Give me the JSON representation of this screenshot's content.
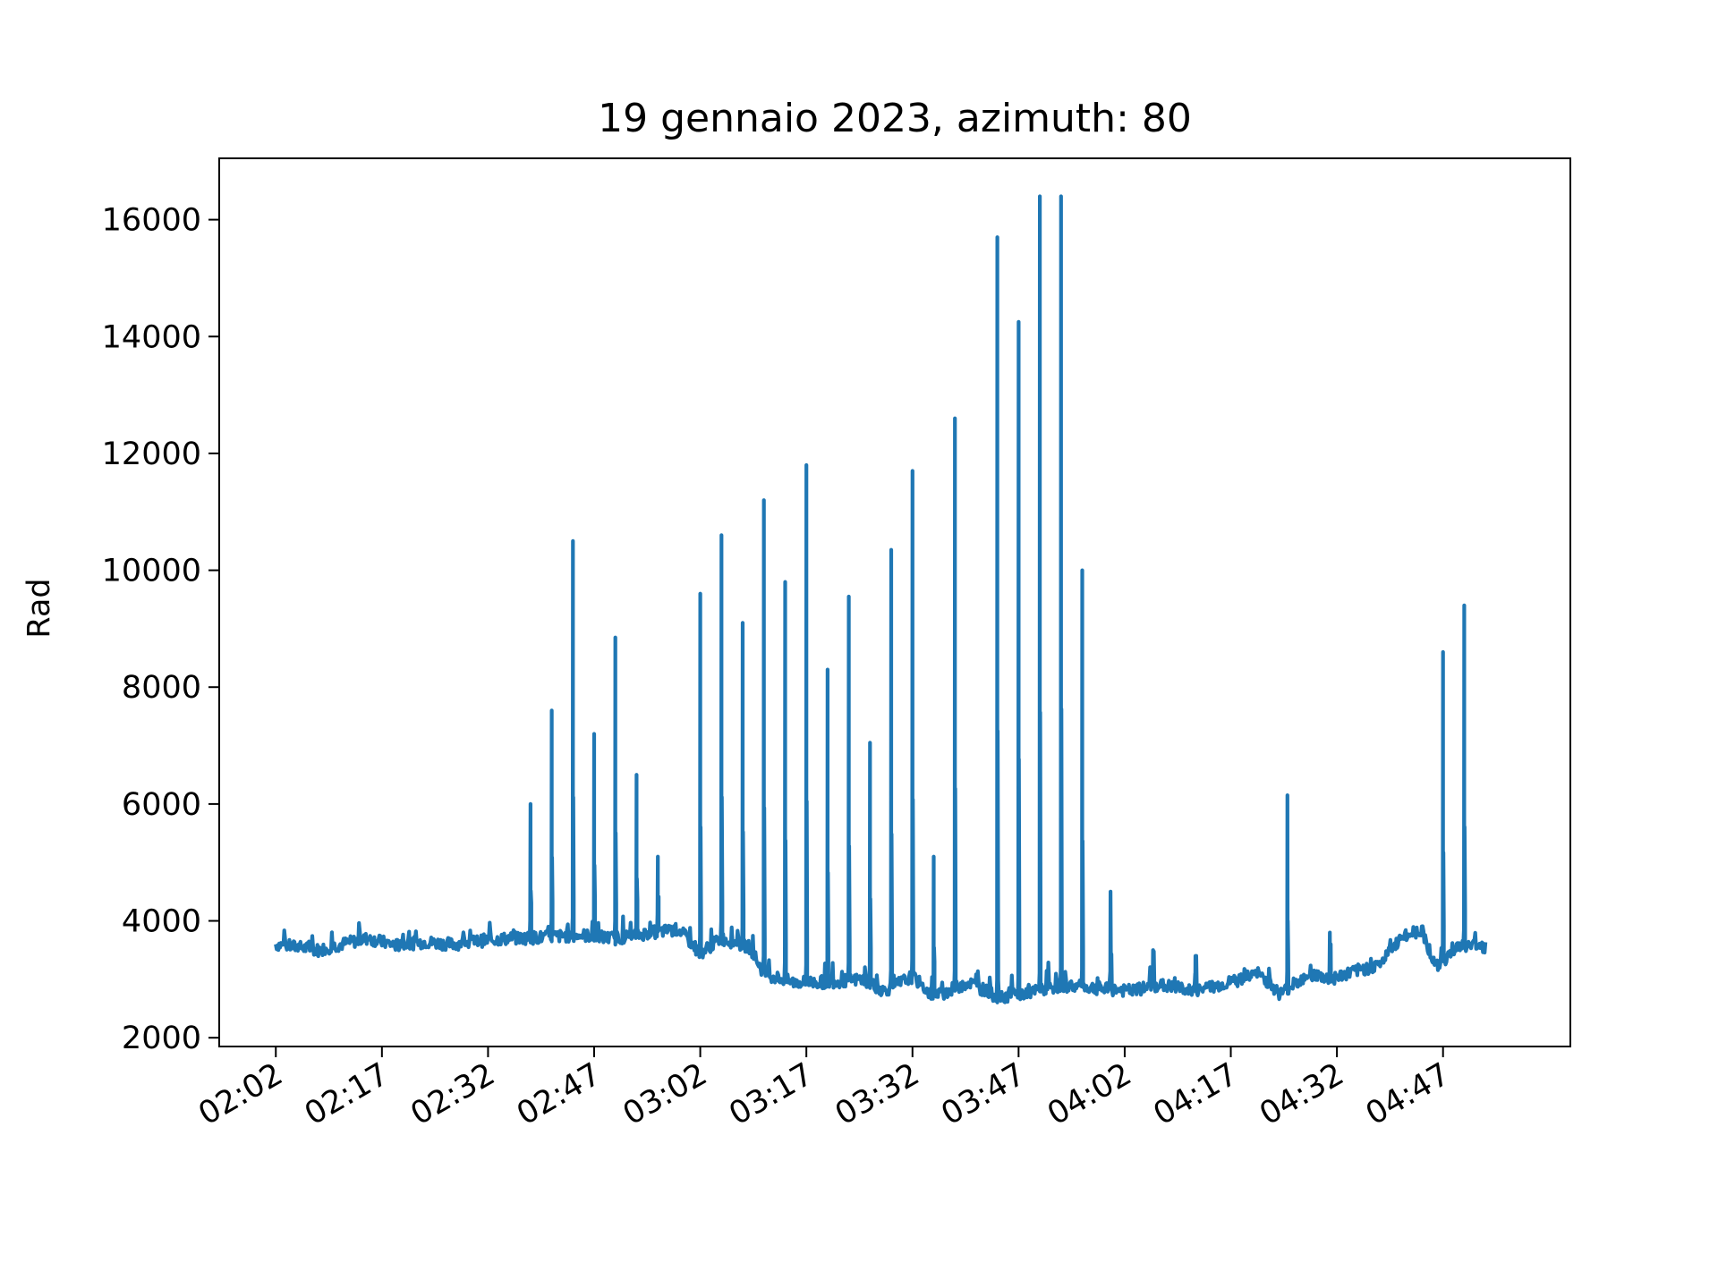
{
  "chart_data": {
    "type": "line",
    "title": "19 gennaio 2023, azimuth: 80",
    "xlabel": "",
    "ylabel": "Rad",
    "x_unit": "time (HH:MM)",
    "xlim": [
      "01:54",
      "05:05"
    ],
    "ylim": [
      1850,
      17050
    ],
    "xticks": [
      "02:02",
      "02:17",
      "02:32",
      "02:47",
      "03:02",
      "03:17",
      "03:32",
      "03:47",
      "04:02",
      "04:17",
      "04:32",
      "04:47"
    ],
    "yticks": [
      2000,
      4000,
      6000,
      8000,
      10000,
      12000,
      14000,
      16000
    ],
    "grid": false,
    "legend": "none",
    "series_color": "#1f77b4",
    "series": [
      {
        "name": "",
        "baseline": [
          [
            "02:02",
            3600
          ],
          [
            "02:05",
            3550
          ],
          [
            "02:08",
            3500
          ],
          [
            "02:12",
            3620
          ],
          [
            "02:15",
            3700
          ],
          [
            "02:19",
            3580
          ],
          [
            "02:23",
            3640
          ],
          [
            "02:27",
            3600
          ],
          [
            "02:31",
            3660
          ],
          [
            "02:35",
            3700
          ],
          [
            "02:40",
            3720
          ],
          [
            "02:45",
            3760
          ],
          [
            "02:50",
            3700
          ],
          [
            "02:55",
            3800
          ],
          [
            "02:59",
            3850
          ],
          [
            "03:02",
            3450
          ],
          [
            "03:05",
            3700
          ],
          [
            "03:09",
            3550
          ],
          [
            "03:11",
            3100
          ],
          [
            "03:15",
            2950
          ],
          [
            "03:20",
            2950
          ],
          [
            "03:25",
            3000
          ],
          [
            "03:28",
            2800
          ],
          [
            "03:32",
            3050
          ],
          [
            "03:35",
            2700
          ],
          [
            "03:40",
            2950
          ],
          [
            "03:44",
            2700
          ],
          [
            "03:48",
            2750
          ],
          [
            "03:53",
            2900
          ],
          [
            "03:58",
            2850
          ],
          [
            "04:03",
            2800
          ],
          [
            "04:07",
            2900
          ],
          [
            "04:12",
            2800
          ],
          [
            "04:17",
            2950
          ],
          [
            "04:21",
            3100
          ],
          [
            "04:24",
            2750
          ],
          [
            "04:28",
            3100
          ],
          [
            "04:31",
            3000
          ],
          [
            "04:35",
            3150
          ],
          [
            "04:38",
            3250
          ],
          [
            "04:41",
            3700
          ],
          [
            "04:44",
            3850
          ],
          [
            "04:46",
            3200
          ],
          [
            "04:49",
            3550
          ],
          [
            "04:52",
            3600
          ],
          [
            "04:53",
            3550
          ]
        ],
        "peaks": [
          [
            "02:38",
            6000
          ],
          [
            "02:41",
            7600
          ],
          [
            "02:44",
            10500
          ],
          [
            "02:47",
            7200
          ],
          [
            "02:50",
            8850
          ],
          [
            "02:53",
            6500
          ],
          [
            "02:56",
            5100
          ],
          [
            "03:02",
            9600
          ],
          [
            "03:05",
            10600
          ],
          [
            "03:08",
            9100
          ],
          [
            "03:11",
            11200
          ],
          [
            "03:14",
            9800
          ],
          [
            "03:17",
            11800
          ],
          [
            "03:20",
            8300
          ],
          [
            "03:23",
            9550
          ],
          [
            "03:26",
            7050
          ],
          [
            "03:29",
            10350
          ],
          [
            "03:32",
            11700
          ],
          [
            "03:35",
            5100
          ],
          [
            "03:38",
            12600
          ],
          [
            "03:44",
            15700
          ],
          [
            "03:47",
            14250
          ],
          [
            "03:50",
            16400
          ],
          [
            "03:53",
            16400
          ],
          [
            "03:56",
            10000
          ],
          [
            "04:00",
            4500
          ],
          [
            "04:06",
            3500
          ],
          [
            "04:12",
            3400
          ],
          [
            "04:25",
            6150
          ],
          [
            "04:31",
            3800
          ],
          [
            "04:47",
            8600
          ],
          [
            "04:50",
            9400
          ]
        ]
      }
    ]
  }
}
